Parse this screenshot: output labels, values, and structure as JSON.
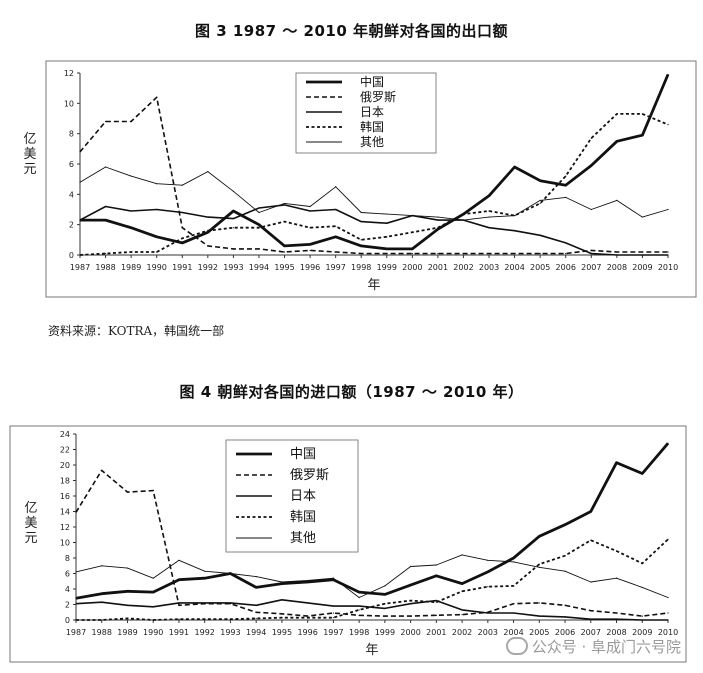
{
  "chart_data": [
    {
      "type": "line",
      "title": "图 3  1987 ～ 2010 年朝鲜对各国的出口额",
      "xlabel": "年",
      "ylabel": "亿美元",
      "ylim": [
        0,
        12
      ],
      "yticks": [
        0,
        2,
        4,
        6,
        8,
        10,
        12
      ],
      "legend_position": "top-center",
      "x": [
        "1987",
        "1988",
        "1989",
        "1990",
        "1991",
        "1992",
        "1993",
        "1994",
        "1995",
        "1996",
        "1997",
        "1998",
        "1999",
        "2000",
        "2001",
        "2002",
        "2003",
        "2004",
        "2005",
        "2006",
        "2007",
        "2008",
        "2009",
        "2010"
      ],
      "series": [
        {
          "name": "中国",
          "style": "thick-solid",
          "values": [
            2.3,
            2.3,
            1.8,
            1.2,
            0.8,
            1.5,
            2.9,
            2.0,
            0.6,
            0.7,
            1.2,
            0.6,
            0.4,
            0.4,
            1.7,
            2.7,
            3.9,
            5.8,
            4.9,
            4.6,
            5.9,
            7.5,
            7.9,
            11.9
          ]
        },
        {
          "name": "俄罗斯",
          "style": "dashed",
          "values": [
            6.8,
            8.8,
            8.8,
            10.4,
            1.8,
            0.6,
            0.4,
            0.4,
            0.2,
            0.3,
            0.2,
            0.1,
            0.1,
            0.1,
            0.1,
            0.1,
            0.1,
            0.1,
            0.1,
            0.1,
            0.3,
            0.2,
            0.2,
            0.2
          ]
        },
        {
          "name": "日本",
          "style": "medium-solid",
          "values": [
            2.3,
            3.2,
            2.9,
            3.0,
            2.8,
            2.5,
            2.4,
            3.1,
            3.3,
            2.9,
            3.0,
            2.2,
            2.1,
            2.6,
            2.3,
            2.3,
            1.8,
            1.6,
            1.3,
            0.8,
            0.1,
            0.0,
            0.0,
            0.0
          ]
        },
        {
          "name": "韩国",
          "style": "dotted",
          "values": [
            0.0,
            0.1,
            0.2,
            0.2,
            1.1,
            1.6,
            1.8,
            1.8,
            2.2,
            1.8,
            1.9,
            1.0,
            1.2,
            1.5,
            1.8,
            2.7,
            2.9,
            2.6,
            3.4,
            5.2,
            7.7,
            9.3,
            9.3,
            8.6
          ]
        },
        {
          "name": "其他",
          "style": "thin-solid",
          "values": [
            4.8,
            5.8,
            5.2,
            4.7,
            4.6,
            5.5,
            4.2,
            2.8,
            3.4,
            3.2,
            4.5,
            2.8,
            2.7,
            2.6,
            2.5,
            2.3,
            2.5,
            2.6,
            3.6,
            3.8,
            3.0,
            3.6,
            2.5,
            3.0
          ]
        }
      ]
    },
    {
      "type": "line",
      "title": "图 4    朝鲜对各国的进口额（1987 ～ 2010 年）",
      "xlabel": "年",
      "ylabel": "亿美元",
      "ylim": [
        0,
        24
      ],
      "yticks": [
        0,
        2,
        4,
        6,
        8,
        10,
        12,
        14,
        16,
        18,
        20,
        22,
        24
      ],
      "legend_position": "top-left",
      "x": [
        "1987",
        "1988",
        "1989",
        "1990",
        "1991",
        "1992",
        "1993",
        "1994",
        "1995",
        "1996",
        "1997",
        "1998",
        "1999",
        "2000",
        "2001",
        "2002",
        "2003",
        "2004",
        "2005",
        "2006",
        "2007",
        "2008",
        "2009",
        "2010"
      ],
      "series": [
        {
          "name": "中国",
          "style": "thick-solid",
          "values": [
            2.8,
            3.4,
            3.7,
            3.6,
            5.2,
            5.4,
            6.0,
            4.2,
            4.7,
            4.9,
            5.2,
            3.6,
            3.3,
            4.5,
            5.7,
            4.7,
            6.2,
            8.0,
            10.8,
            12.3,
            14.0,
            20.3,
            18.9,
            22.8
          ]
        },
        {
          "name": "俄罗斯",
          "style": "dashed",
          "values": [
            13.9,
            19.3,
            16.5,
            16.7,
            1.9,
            2.1,
            2.1,
            1.0,
            0.8,
            0.5,
            0.9,
            0.6,
            0.5,
            0.5,
            0.6,
            0.7,
            1.0,
            2.1,
            2.2,
            1.9,
            1.2,
            0.9,
            0.5,
            0.9
          ]
        },
        {
          "name": "日本",
          "style": "medium-solid",
          "values": [
            2.1,
            2.3,
            1.9,
            1.7,
            2.2,
            2.2,
            2.2,
            1.9,
            2.6,
            2.2,
            1.8,
            1.8,
            1.5,
            2.1,
            2.5,
            1.3,
            0.9,
            0.9,
            0.5,
            0.4,
            0.1,
            0.1,
            0.0,
            0.0
          ]
        },
        {
          "name": "韩国",
          "style": "dotted",
          "values": [
            0.0,
            0.0,
            0.2,
            0.0,
            0.1,
            0.1,
            0.1,
            0.2,
            0.3,
            0.3,
            0.3,
            1.3,
            2.1,
            2.5,
            2.3,
            3.7,
            4.3,
            4.4,
            7.2,
            8.3,
            10.3,
            8.9,
            7.3,
            10.4
          ]
        },
        {
          "name": "其他",
          "style": "thin-solid",
          "values": [
            6.2,
            7.0,
            6.7,
            5.4,
            7.7,
            6.3,
            6.0,
            5.6,
            4.9,
            5.1,
            5.4,
            2.9,
            4.4,
            6.9,
            7.1,
            8.4,
            7.7,
            7.5,
            6.8,
            6.3,
            4.9,
            5.4,
            4.2,
            2.9
          ]
        }
      ]
    }
  ],
  "source_note": "资料来源：KOTRA，韩国统一部",
  "watermark": "公众号 · 阜成门六号院"
}
